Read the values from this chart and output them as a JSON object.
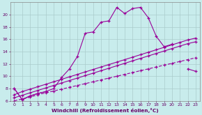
{
  "xlabel": "Windchill (Refroidissement éolien,°C)",
  "background_color": "#c8ecec",
  "line_color": "#990099",
  "x_values": [
    0,
    1,
    2,
    3,
    4,
    5,
    6,
    7,
    8,
    9,
    10,
    11,
    12,
    13,
    14,
    15,
    16,
    17,
    18,
    19,
    20,
    21,
    22,
    23
  ],
  "series_main": [
    8.0,
    6.2,
    6.8,
    7.2,
    7.5,
    8.0,
    9.8,
    11.2,
    13.2,
    17.0,
    17.2,
    18.8,
    19.0,
    21.2,
    20.2,
    21.0,
    21.2,
    19.5,
    16.5,
    14.8,
    15.2,
    null,
    11.2,
    10.8
  ],
  "series_lower": [
    8.0,
    6.2,
    6.8,
    7.2,
    7.5,
    null,
    null,
    null,
    null,
    null,
    null,
    null,
    null,
    null,
    null,
    null,
    null,
    null,
    null,
    null,
    null,
    null,
    null,
    null
  ],
  "series_linear1": [
    6.0,
    6.3,
    6.6,
    7.0,
    7.3,
    7.6,
    7.9,
    8.2,
    8.5,
    8.8,
    9.1,
    9.4,
    9.7,
    10.0,
    10.3,
    10.6,
    10.9,
    11.2,
    11.5,
    11.8,
    12.1,
    12.4,
    12.7,
    13.0
  ],
  "series_linear2": [
    6.5,
    6.9,
    7.3,
    7.7,
    8.1,
    8.5,
    8.9,
    9.3,
    9.7,
    10.1,
    10.5,
    10.9,
    11.3,
    11.7,
    12.1,
    12.5,
    12.9,
    13.3,
    13.7,
    14.1,
    14.5,
    14.9,
    15.3,
    15.6
  ],
  "series_linear3": [
    7.0,
    7.5,
    7.9,
    8.3,
    8.7,
    9.1,
    9.5,
    9.9,
    10.3,
    10.7,
    11.1,
    11.5,
    11.9,
    12.3,
    12.7,
    13.1,
    13.5,
    13.9,
    14.3,
    14.7,
    15.1,
    15.5,
    15.9,
    16.2
  ],
  "ylim": [
    6,
    22
  ],
  "xlim": [
    -0.5,
    23.5
  ],
  "yticks": [
    6,
    8,
    10,
    12,
    14,
    16,
    18,
    20
  ],
  "xticks": [
    0,
    1,
    2,
    3,
    4,
    5,
    6,
    7,
    8,
    9,
    10,
    11,
    12,
    13,
    14,
    15,
    16,
    17,
    18,
    19,
    20,
    21,
    22,
    23
  ]
}
